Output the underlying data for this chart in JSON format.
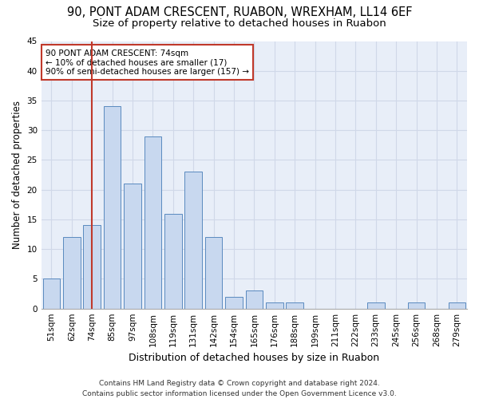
{
  "title1": "90, PONT ADAM CRESCENT, RUABON, WREXHAM, LL14 6EF",
  "title2": "Size of property relative to detached houses in Ruabon",
  "xlabel": "Distribution of detached houses by size in Ruabon",
  "ylabel": "Number of detached properties",
  "categories": [
    "51sqm",
    "62sqm",
    "74sqm",
    "85sqm",
    "97sqm",
    "108sqm",
    "119sqm",
    "131sqm",
    "142sqm",
    "154sqm",
    "165sqm",
    "176sqm",
    "188sqm",
    "199sqm",
    "211sqm",
    "222sqm",
    "233sqm",
    "245sqm",
    "256sqm",
    "268sqm",
    "279sqm"
  ],
  "values": [
    5,
    12,
    14,
    34,
    21,
    29,
    16,
    23,
    12,
    2,
    3,
    1,
    1,
    0,
    0,
    0,
    1,
    0,
    1,
    0,
    1
  ],
  "bar_facecolor": "#c8d8ef",
  "bar_edgecolor": "#5a8abf",
  "vline_x_index": 2,
  "vline_color": "#c0392b",
  "annotation_text": "90 PONT ADAM CRESCENT: 74sqm\n← 10% of detached houses are smaller (17)\n90% of semi-detached houses are larger (157) →",
  "annotation_box_edgecolor": "#c0392b",
  "annotation_box_facecolor": "#ffffff",
  "ylim": [
    0,
    45
  ],
  "yticks": [
    0,
    5,
    10,
    15,
    20,
    25,
    30,
    35,
    40,
    45
  ],
  "grid_color": "#d0d8e8",
  "background_color": "#ffffff",
  "plot_bg_color": "#e8eef8",
  "footer": "Contains HM Land Registry data © Crown copyright and database right 2024.\nContains public sector information licensed under the Open Government Licence v3.0.",
  "title1_fontsize": 10.5,
  "title2_fontsize": 9.5,
  "xlabel_fontsize": 9,
  "ylabel_fontsize": 8.5,
  "tick_fontsize": 7.5,
  "footer_fontsize": 6.5
}
